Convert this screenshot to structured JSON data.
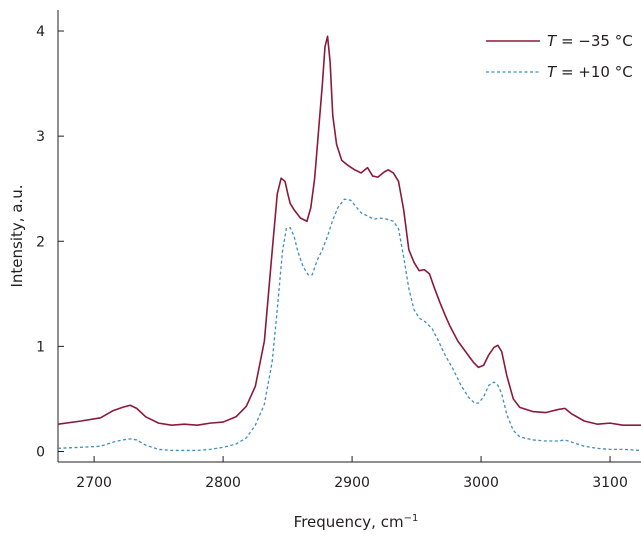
{
  "chart_data": {
    "type": "line",
    "title": "",
    "xlabel": "Frequency, cm",
    "xlabel_superscript": "−1",
    "ylabel": "Intensity, a.u.",
    "xlim": [
      2672,
      3124
    ],
    "ylim": [
      -0.1,
      4.2
    ],
    "xticks": [
      2700,
      2800,
      2900,
      3000,
      3100
    ],
    "yticks": [
      0,
      1,
      2,
      3,
      4
    ],
    "grid": false,
    "legend_position": "top-right",
    "series": [
      {
        "name_var": "T",
        "name_rest": " = −35 °C",
        "color": "#8b1a3a",
        "dash": "solid",
        "x": [
          2672,
          2690,
          2705,
          2715,
          2722,
          2728,
          2733,
          2740,
          2750,
          2760,
          2770,
          2780,
          2790,
          2800,
          2810,
          2818,
          2825,
          2832,
          2838,
          2842,
          2845,
          2848,
          2850,
          2852,
          2855,
          2860,
          2865,
          2868,
          2871,
          2874,
          2877,
          2879,
          2881,
          2883,
          2885,
          2888,
          2892,
          2897,
          2902,
          2907,
          2912,
          2916,
          2920,
          2925,
          2928,
          2932,
          2936,
          2940,
          2944,
          2948,
          2952,
          2956,
          2960,
          2964,
          2968,
          2972,
          2976,
          2982,
          2988,
          2994,
          2998,
          3002,
          3006,
          3010,
          3013,
          3016,
          3020,
          3025,
          3030,
          3040,
          3050,
          3060,
          3065,
          3070,
          3080,
          3090,
          3100,
          3110,
          3124
        ],
        "y": [
          0.26,
          0.29,
          0.32,
          0.39,
          0.42,
          0.44,
          0.41,
          0.33,
          0.27,
          0.25,
          0.26,
          0.25,
          0.27,
          0.28,
          0.33,
          0.43,
          0.62,
          1.05,
          1.9,
          2.45,
          2.6,
          2.57,
          2.46,
          2.36,
          2.3,
          2.22,
          2.19,
          2.32,
          2.6,
          3.05,
          3.5,
          3.85,
          3.95,
          3.7,
          3.2,
          2.92,
          2.77,
          2.72,
          2.68,
          2.65,
          2.7,
          2.62,
          2.61,
          2.66,
          2.68,
          2.65,
          2.57,
          2.3,
          1.92,
          1.8,
          1.72,
          1.73,
          1.69,
          1.55,
          1.42,
          1.3,
          1.19,
          1.05,
          0.95,
          0.85,
          0.8,
          0.82,
          0.92,
          0.99,
          1.01,
          0.95,
          0.72,
          0.5,
          0.42,
          0.38,
          0.37,
          0.4,
          0.41,
          0.36,
          0.29,
          0.26,
          0.27,
          0.25,
          0.25
        ]
      },
      {
        "name_var": "T",
        "name_rest": " = +10 °C",
        "color": "#3e8ec0",
        "dash": "dashed",
        "x": [
          2672,
          2690,
          2705,
          2715,
          2722,
          2728,
          2733,
          2740,
          2750,
          2760,
          2770,
          2780,
          2790,
          2800,
          2810,
          2818,
          2825,
          2832,
          2838,
          2842,
          2846,
          2849,
          2852,
          2855,
          2858,
          2862,
          2866,
          2869,
          2873,
          2877,
          2881,
          2885,
          2889,
          2894,
          2899,
          2903,
          2907,
          2912,
          2917,
          2922,
          2927,
          2932,
          2936,
          2940,
          2944,
          2948,
          2952,
          2957,
          2962,
          2967,
          2972,
          2978,
          2984,
          2990,
          2995,
          2998,
          3002,
          3006,
          3010,
          3013,
          3016,
          3020,
          3025,
          3030,
          3040,
          3050,
          3060,
          3065,
          3070,
          3080,
          3090,
          3100,
          3110,
          3124
        ],
        "y": [
          0.03,
          0.04,
          0.05,
          0.09,
          0.11,
          0.12,
          0.11,
          0.06,
          0.02,
          0.01,
          0.01,
          0.01,
          0.02,
          0.04,
          0.07,
          0.13,
          0.25,
          0.45,
          0.85,
          1.35,
          1.9,
          2.12,
          2.13,
          2.05,
          1.9,
          1.76,
          1.68,
          1.68,
          1.82,
          1.92,
          2.05,
          2.2,
          2.32,
          2.4,
          2.39,
          2.33,
          2.27,
          2.24,
          2.21,
          2.22,
          2.21,
          2.19,
          2.12,
          1.85,
          1.55,
          1.35,
          1.27,
          1.23,
          1.17,
          1.05,
          0.92,
          0.79,
          0.64,
          0.52,
          0.46,
          0.46,
          0.52,
          0.63,
          0.66,
          0.63,
          0.55,
          0.35,
          0.2,
          0.14,
          0.11,
          0.1,
          0.1,
          0.11,
          0.09,
          0.05,
          0.03,
          0.02,
          0.02,
          0.01
        ]
      }
    ]
  }
}
